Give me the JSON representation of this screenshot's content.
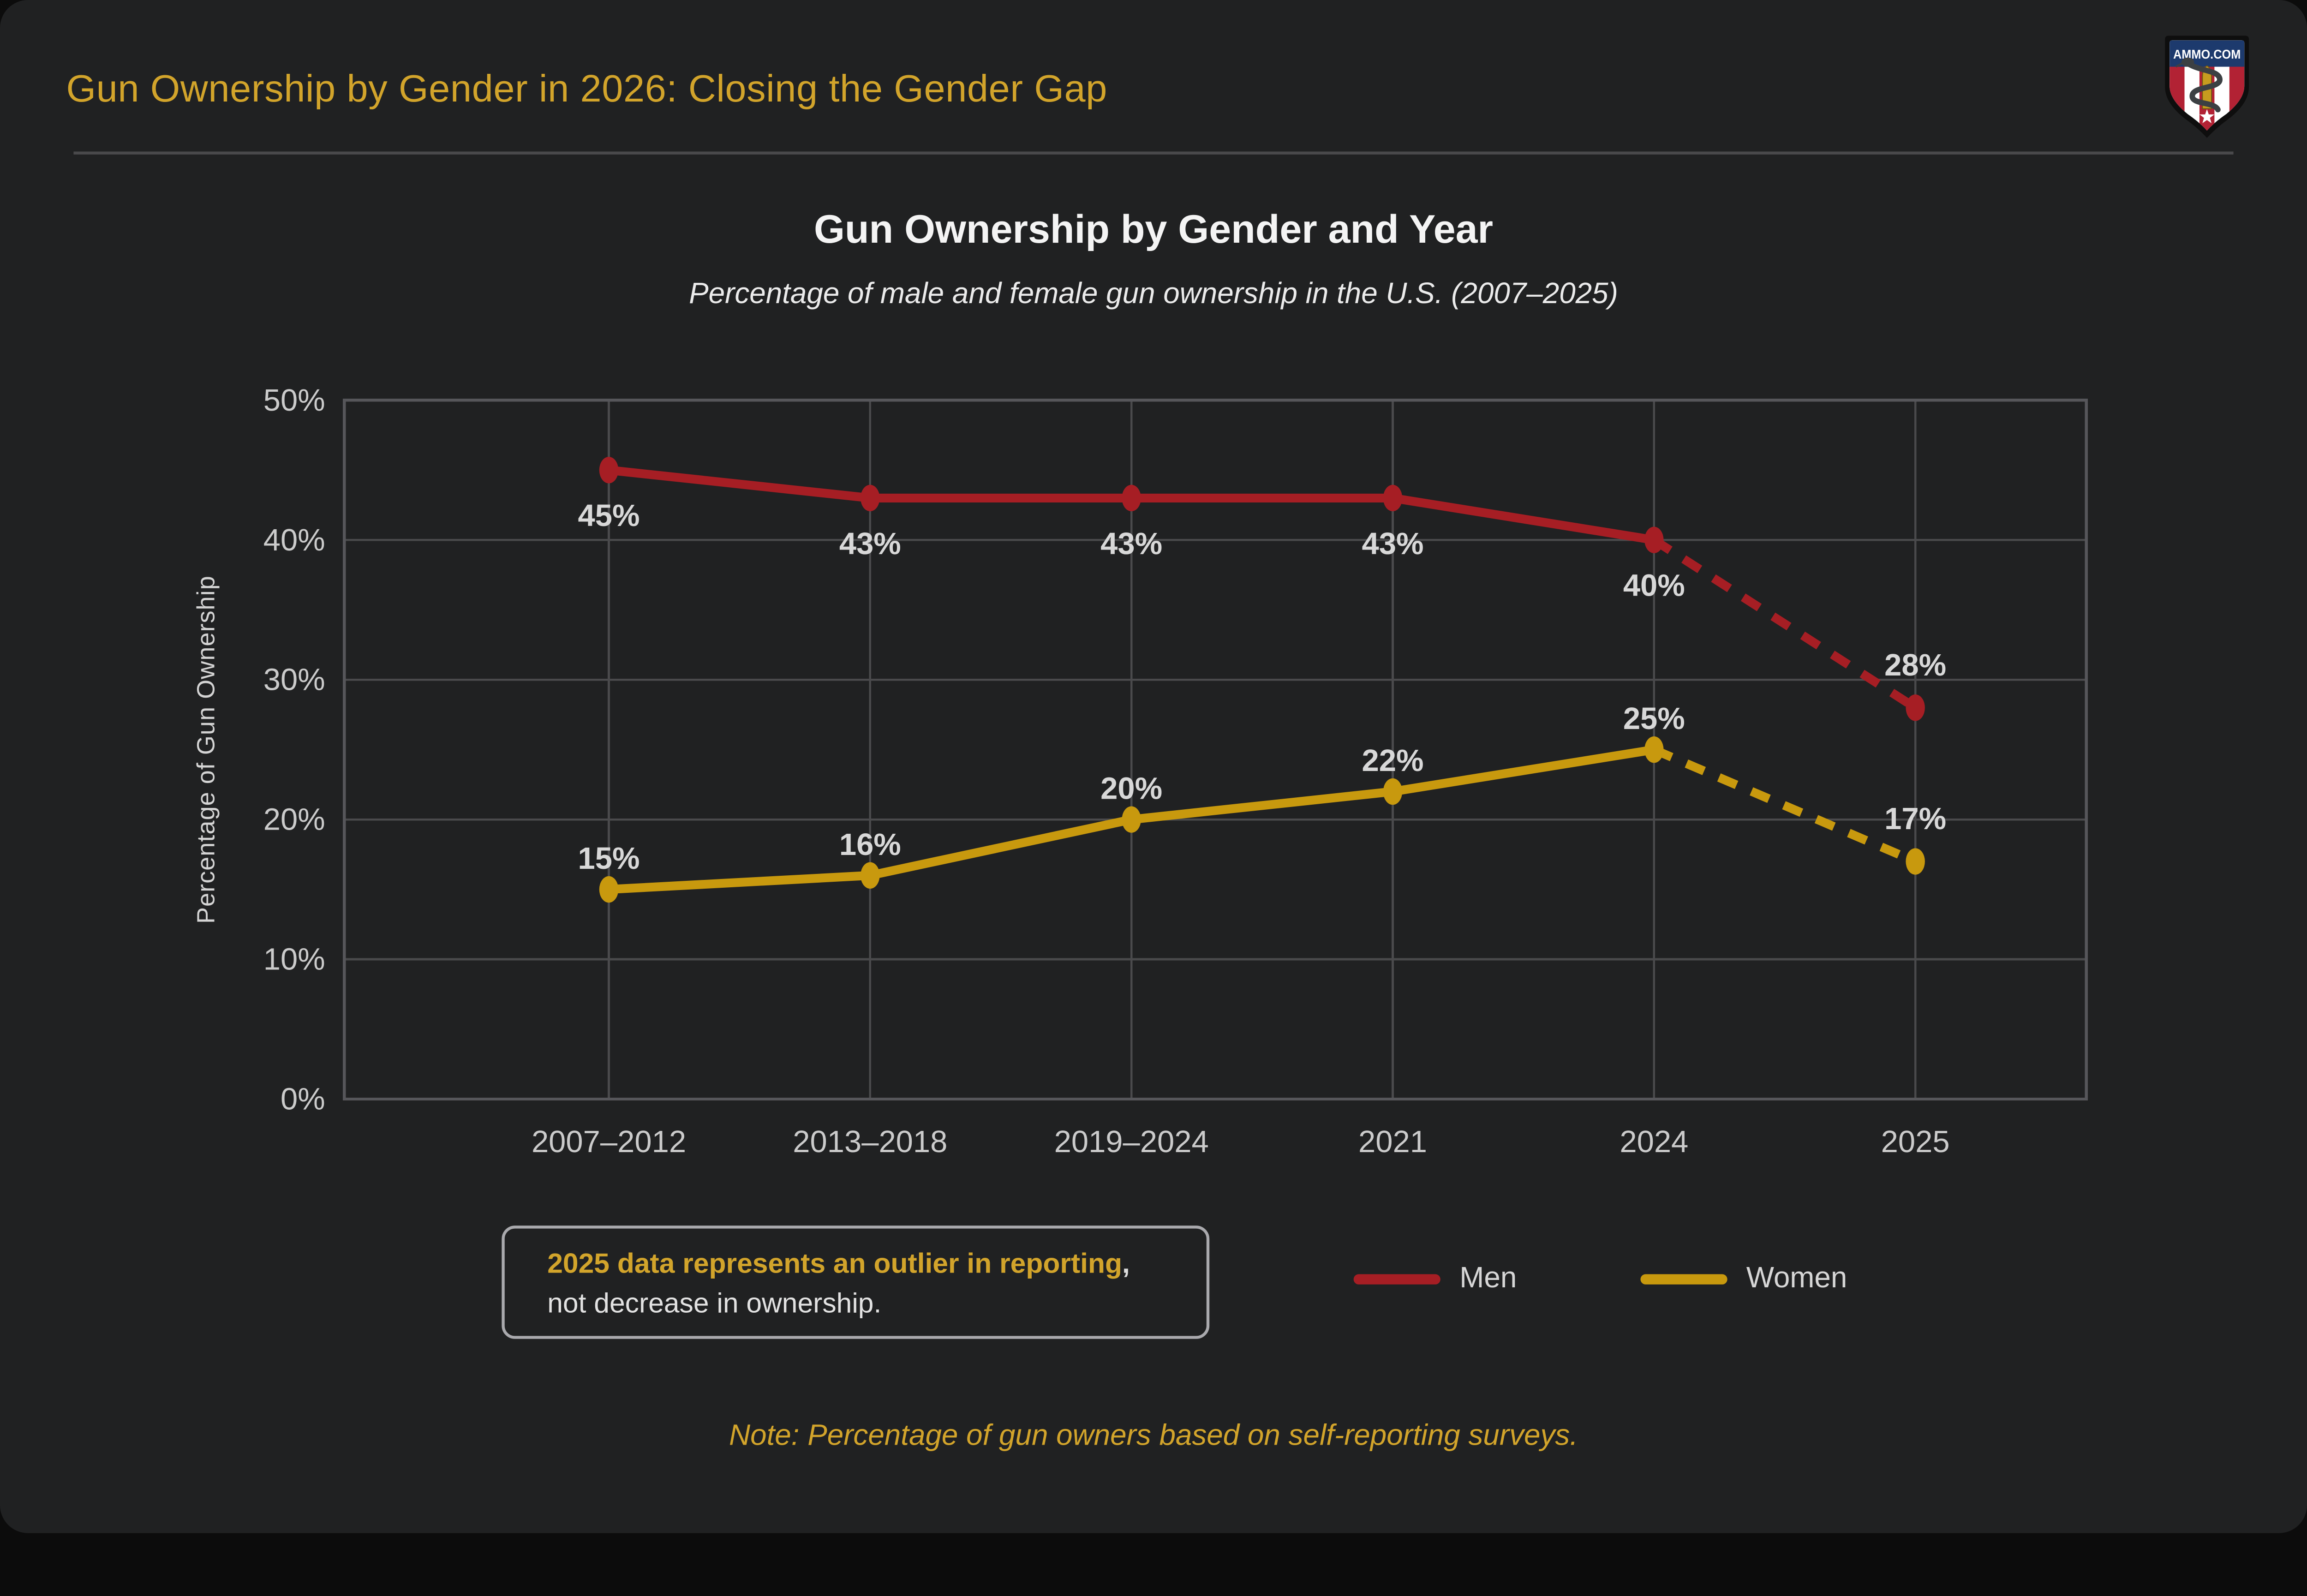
{
  "header": {
    "title": "Gun Ownership by Gender in 2026: Closing the Gender Gap"
  },
  "logo": {
    "text": "AMMO.COM"
  },
  "chart_data": {
    "type": "line",
    "title": "Gun Ownership by Gender and Year",
    "subtitle": "Percentage of male and female gun ownership in the U.S. (2007–2025)",
    "ylabel": "Percentage of Gun Ownership",
    "ylim": [
      0,
      50
    ],
    "yticks": [
      0,
      10,
      20,
      30,
      40,
      50
    ],
    "ytick_labels": [
      "0%",
      "10%",
      "20%",
      "30%",
      "40%",
      "50%"
    ],
    "categories": [
      "2007–2012",
      "2013–2018",
      "2019–2024",
      "2021",
      "2024",
      "2025"
    ],
    "series": [
      {
        "name": "Men",
        "color": "#a61e24",
        "values": [
          45,
          43,
          43,
          43,
          40,
          28
        ],
        "data_labels": [
          "45%",
          "43%",
          "43%",
          "43%",
          "40%",
          "28%"
        ],
        "dashed_from_index": 4,
        "label_side": "below",
        "last_label_side": "above"
      },
      {
        "name": "Women",
        "color": "#c8990e",
        "values": [
          15,
          16,
          20,
          22,
          25,
          17
        ],
        "data_labels": [
          "15%",
          "16%",
          "20%",
          "22%",
          "25%",
          "17%"
        ],
        "dashed_from_index": 4,
        "label_side": "above",
        "last_label_side": "above"
      }
    ],
    "grid": true,
    "legend_position": "bottom"
  },
  "note_box": {
    "highlight": "2025 data represents an outlier in reporting",
    "separator": ",",
    "line2": "not decrease in ownership."
  },
  "footer_note": "Note: Percentage of gun owners based on self-reporting surveys.",
  "colors": {
    "background": "#202122",
    "accent_gold": "#d2a42b",
    "men_red": "#a61e24",
    "women_gold": "#c8990e",
    "grid": "#4a4a4c",
    "plot_border": "#56565a",
    "axis_text": "#cbcbcb",
    "data_label": "#d8d8d8",
    "logo_blue": "#1d3a6d",
    "logo_red": "#b22234"
  }
}
